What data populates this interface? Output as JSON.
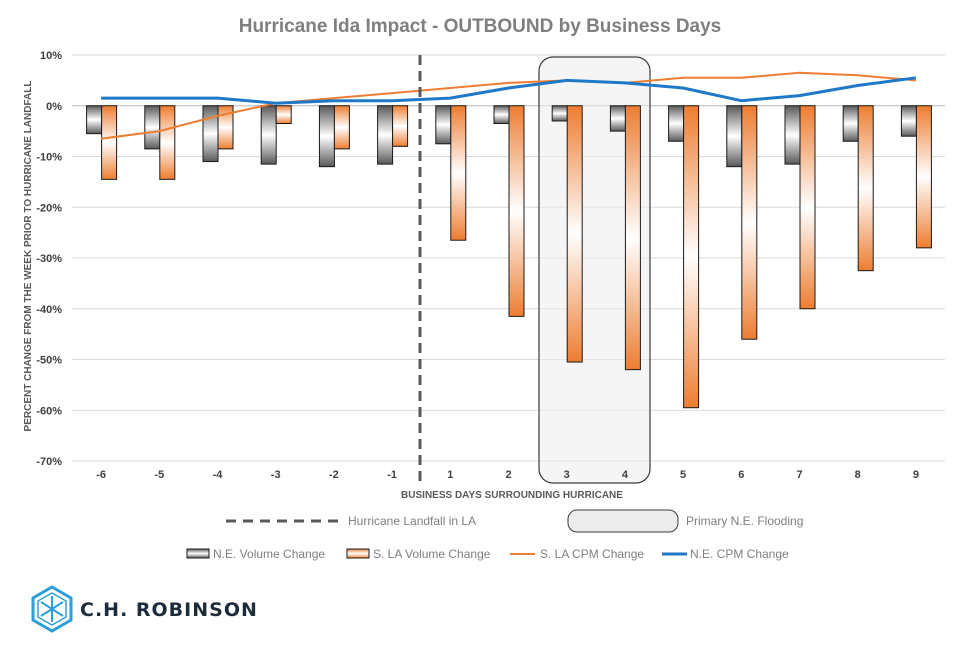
{
  "chart_data": {
    "type": "bar",
    "title": "Hurricane Ida Impact - OUTBOUND by Business Days",
    "xlabel": "BUSINESS DAYS SURROUNDING HURRICANE",
    "ylabel": "PERCENT CHANGE FROM THE WEEK PRIOR TO HURRICANE LANDFALL",
    "ylim": [
      -70,
      10
    ],
    "yticks": [
      10,
      0,
      -10,
      -20,
      -30,
      -40,
      -50,
      -60,
      -70
    ],
    "ytick_labels": [
      "10%",
      "0%",
      "-10%",
      "-20%",
      "-30%",
      "-40%",
      "-50%",
      "-60%",
      "-70%"
    ],
    "categories": [
      "-6",
      "-5",
      "-4",
      "-3",
      "-2",
      "-1",
      "1",
      "2",
      "3",
      "4",
      "5",
      "6",
      "7",
      "8",
      "9"
    ],
    "series": [
      {
        "name": "N.E. Volume Change",
        "kind": "bar",
        "color": "#595959",
        "values": [
          -5.5,
          -8.5,
          -11,
          -11.5,
          -12,
          -11.5,
          -7.5,
          -3.5,
          -3,
          -5,
          -7,
          -12,
          -11.5,
          -7,
          -6
        ]
      },
      {
        "name": "S. LA Volume Change",
        "kind": "bar",
        "color": "#ed7d31",
        "values": [
          -14.5,
          -14.5,
          -8.5,
          -3.5,
          -8.5,
          -8,
          -26.5,
          -41.5,
          -50.5,
          -52,
          -59.5,
          -46,
          -40,
          -32.5,
          -28
        ]
      },
      {
        "name": "S. LA CPM Change",
        "kind": "line",
        "color": "#ed7d31",
        "values": [
          -6.5,
          -5,
          -2,
          0.5,
          1.5,
          2.5,
          3.5,
          4.5,
          5,
          4.5,
          5.5,
          5.5,
          6.5,
          6,
          5
        ]
      },
      {
        "name": "N.E. CPM Change",
        "kind": "line",
        "color": "#1f78c8",
        "values": [
          1.5,
          1.5,
          1.5,
          0.5,
          1,
          1,
          1.5,
          3.5,
          5,
          4.5,
          3.5,
          1,
          2,
          4,
          5.5
        ]
      }
    ],
    "annotations": [
      {
        "type": "vline",
        "between": [
          "-1",
          "1"
        ],
        "label": "Hurricane Landfall in LA",
        "style": "dashed"
      },
      {
        "type": "shaded-region",
        "span": [
          "3",
          "4"
        ],
        "label": "Primary N.E. Flooding"
      }
    ],
    "grid": true,
    "legend_position": "bottom"
  },
  "branding": {
    "company": "C.H. ROBINSON"
  }
}
